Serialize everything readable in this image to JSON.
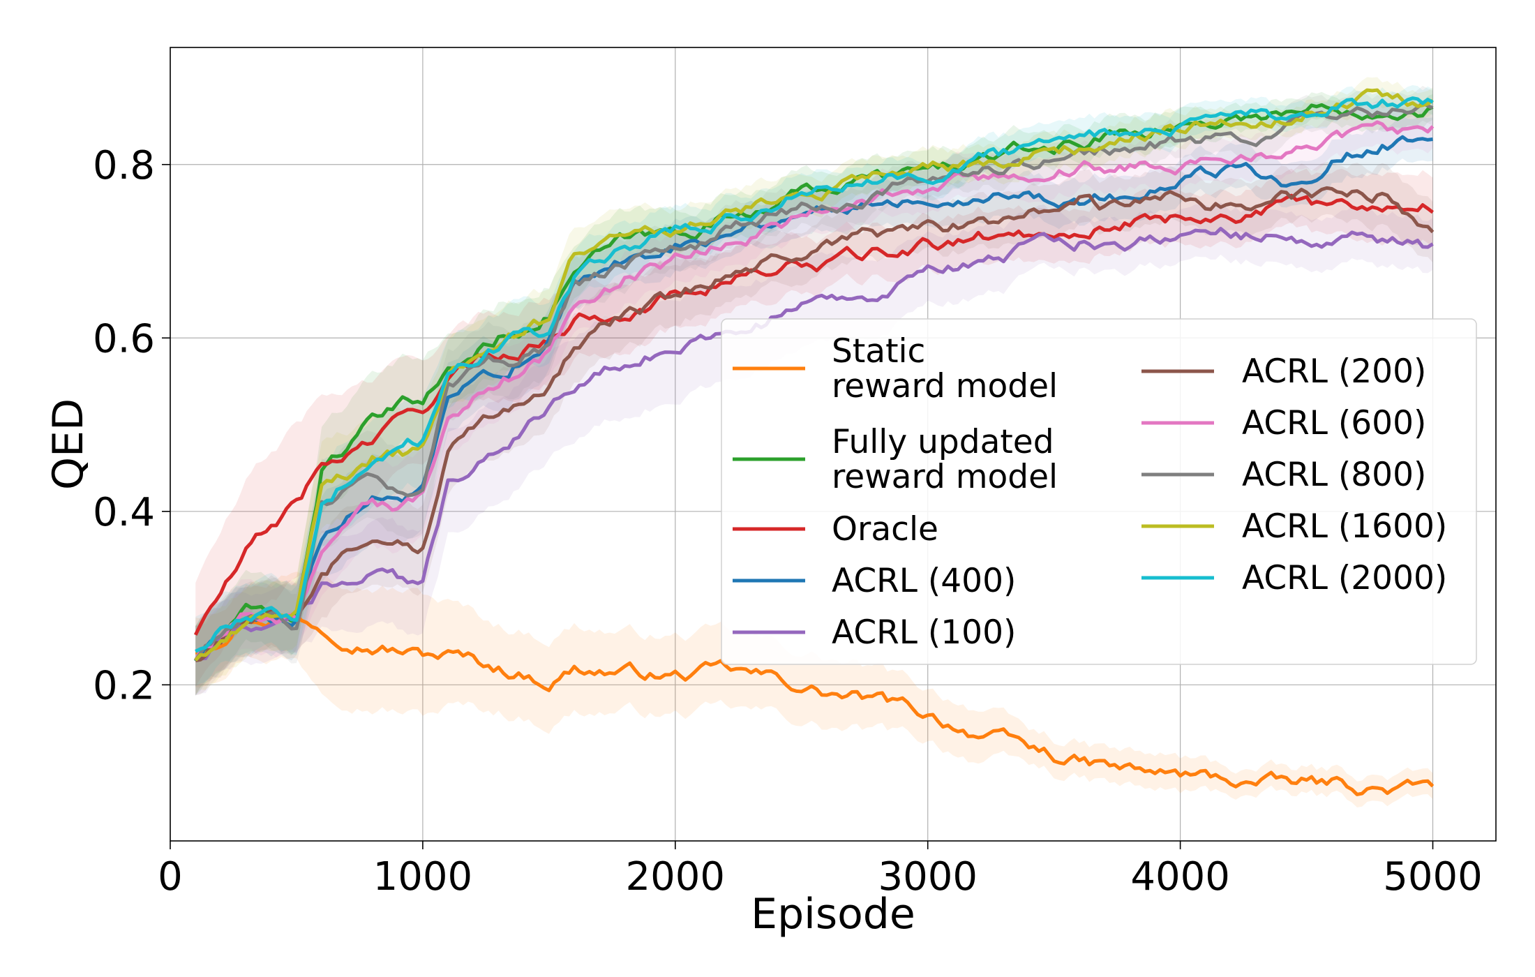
{
  "chart_data": {
    "type": "line",
    "xlabel": "Episode",
    "ylabel": "QED",
    "xlim": [
      0,
      5250
    ],
    "ylim": [
      0.02,
      0.935
    ],
    "xticks": [
      0,
      1000,
      2000,
      3000,
      4000,
      5000
    ],
    "xtick_labels": [
      "0",
      "1000",
      "2000",
      "3000",
      "4000",
      "5000"
    ],
    "yticks": [
      0.2,
      0.4,
      0.6,
      0.8
    ],
    "ytick_labels": [
      "0.2",
      "0.4",
      "0.6",
      "0.8"
    ],
    "grid": true,
    "legend_placement": "center-right",
    "x": [
      100,
      300,
      500,
      600,
      800,
      1000,
      1100,
      1300,
      1500,
      1600,
      1800,
      2000,
      2200,
      2400,
      2600,
      2800,
      3000,
      3200,
      3400,
      3600,
      3800,
      4000,
      4200,
      4400,
      4600,
      4800,
      5000
    ],
    "series": [
      {
        "name": "Static reward model",
        "legend_lines": [
          "Static",
          "reward model"
        ],
        "color": "#ff7f0e",
        "values": [
          0.24,
          0.28,
          0.28,
          0.27,
          0.25,
          0.235,
          0.235,
          0.22,
          0.205,
          0.22,
          0.215,
          0.21,
          0.215,
          0.205,
          0.19,
          0.18,
          0.165,
          0.145,
          0.125,
          0.11,
          0.1,
          0.095,
          0.09,
          0.085,
          0.085,
          0.08,
          0.08
        ],
        "spread": [
          0.04,
          0.04,
          0.05,
          0.07,
          0.07,
          0.07,
          0.06,
          0.05,
          0.05,
          0.05,
          0.045,
          0.045,
          0.045,
          0.04,
          0.04,
          0.035,
          0.03,
          0.03,
          0.02,
          0.02,
          0.02,
          0.02,
          0.015,
          0.015,
          0.015,
          0.015,
          0.015
        ]
      },
      {
        "name": "Fully updated reward model",
        "legend_lines": [
          "Fully updated",
          "reward model"
        ],
        "color": "#2ca02c",
        "values": [
          0.23,
          0.28,
          0.28,
          0.45,
          0.5,
          0.53,
          0.56,
          0.6,
          0.63,
          0.68,
          0.71,
          0.72,
          0.74,
          0.76,
          0.775,
          0.785,
          0.79,
          0.805,
          0.815,
          0.825,
          0.84,
          0.845,
          0.855,
          0.86,
          0.865,
          0.868,
          0.87
        ],
        "spread": [
          0.04,
          0.04,
          0.04,
          0.05,
          0.05,
          0.05,
          0.04,
          0.04,
          0.035,
          0.03,
          0.03,
          0.025,
          0.025,
          0.025,
          0.02,
          0.02,
          0.02,
          0.02,
          0.02,
          0.02,
          0.02,
          0.02,
          0.015,
          0.015,
          0.015,
          0.015,
          0.015
        ]
      },
      {
        "name": "Oracle",
        "legend_lines": [
          "Oracle"
        ],
        "color": "#d62728",
        "values": [
          0.26,
          0.35,
          0.41,
          0.45,
          0.48,
          0.52,
          0.55,
          0.58,
          0.6,
          0.62,
          0.635,
          0.65,
          0.67,
          0.68,
          0.685,
          0.695,
          0.705,
          0.715,
          0.72,
          0.73,
          0.735,
          0.74,
          0.745,
          0.75,
          0.75,
          0.755,
          0.755
        ],
        "spread": [
          0.06,
          0.08,
          0.09,
          0.08,
          0.07,
          0.06,
          0.05,
          0.05,
          0.05,
          0.045,
          0.04,
          0.04,
          0.035,
          0.035,
          0.03,
          0.03,
          0.03,
          0.03,
          0.03,
          0.03,
          0.03,
          0.03,
          0.03,
          0.03,
          0.035,
          0.04,
          0.04
        ]
      },
      {
        "name": "ACRL (400)",
        "legend_lines": [
          "ACRL (400)"
        ],
        "color": "#1f77b4",
        "values": [
          0.23,
          0.28,
          0.28,
          0.37,
          0.41,
          0.42,
          0.52,
          0.56,
          0.6,
          0.66,
          0.69,
          0.71,
          0.725,
          0.74,
          0.75,
          0.76,
          0.765,
          0.77,
          0.765,
          0.76,
          0.765,
          0.775,
          0.795,
          0.785,
          0.81,
          0.825,
          0.83
        ],
        "spread": [
          0.04,
          0.04,
          0.04,
          0.05,
          0.05,
          0.05,
          0.04,
          0.04,
          0.035,
          0.03,
          0.03,
          0.03,
          0.025,
          0.025,
          0.025,
          0.025,
          0.025,
          0.025,
          0.025,
          0.025,
          0.025,
          0.025,
          0.025,
          0.025,
          0.025,
          0.025,
          0.025
        ]
      },
      {
        "name": "ACRL (100)",
        "legend_lines": [
          "ACRL (100)"
        ],
        "color": "#9467bd",
        "values": [
          0.23,
          0.27,
          0.28,
          0.31,
          0.33,
          0.31,
          0.43,
          0.48,
          0.52,
          0.55,
          0.57,
          0.59,
          0.61,
          0.625,
          0.645,
          0.655,
          0.67,
          0.69,
          0.7,
          0.71,
          0.715,
          0.725,
          0.72,
          0.715,
          0.715,
          0.71,
          0.7
        ],
        "spread": [
          0.04,
          0.04,
          0.04,
          0.05,
          0.06,
          0.06,
          0.06,
          0.06,
          0.06,
          0.06,
          0.06,
          0.06,
          0.055,
          0.05,
          0.05,
          0.045,
          0.04,
          0.04,
          0.035,
          0.03,
          0.03,
          0.03,
          0.03,
          0.03,
          0.03,
          0.03,
          0.03
        ]
      },
      {
        "name": "ACRL (200)",
        "legend_lines": [
          "ACRL (200)"
        ],
        "color": "#8c564b",
        "values": [
          0.23,
          0.28,
          0.28,
          0.33,
          0.38,
          0.36,
          0.47,
          0.52,
          0.55,
          0.59,
          0.625,
          0.645,
          0.675,
          0.69,
          0.705,
          0.715,
          0.725,
          0.73,
          0.74,
          0.76,
          0.745,
          0.76,
          0.755,
          0.765,
          0.76,
          0.765,
          0.72
        ],
        "spread": [
          0.04,
          0.04,
          0.04,
          0.05,
          0.05,
          0.05,
          0.05,
          0.05,
          0.045,
          0.04,
          0.04,
          0.035,
          0.03,
          0.03,
          0.03,
          0.03,
          0.03,
          0.03,
          0.03,
          0.03,
          0.03,
          0.03,
          0.03,
          0.03,
          0.03,
          0.035,
          0.035
        ]
      },
      {
        "name": "ACRL (600)",
        "legend_lines": [
          "ACRL (600)"
        ],
        "color": "#e377c2",
        "values": [
          0.23,
          0.28,
          0.28,
          0.36,
          0.4,
          0.41,
          0.5,
          0.55,
          0.58,
          0.64,
          0.67,
          0.69,
          0.715,
          0.73,
          0.745,
          0.76,
          0.77,
          0.78,
          0.79,
          0.8,
          0.8,
          0.795,
          0.81,
          0.82,
          0.825,
          0.835,
          0.845
        ],
        "spread": [
          0.04,
          0.04,
          0.04,
          0.05,
          0.05,
          0.05,
          0.04,
          0.04,
          0.035,
          0.03,
          0.03,
          0.03,
          0.025,
          0.025,
          0.025,
          0.025,
          0.025,
          0.025,
          0.025,
          0.025,
          0.025,
          0.025,
          0.025,
          0.025,
          0.025,
          0.025,
          0.025
        ]
      },
      {
        "name": "ACRL (800)",
        "legend_lines": [
          "ACRL (800)"
        ],
        "color": "#7f7f7f",
        "values": [
          0.23,
          0.28,
          0.27,
          0.4,
          0.43,
          0.42,
          0.54,
          0.57,
          0.59,
          0.66,
          0.68,
          0.7,
          0.725,
          0.74,
          0.755,
          0.77,
          0.78,
          0.79,
          0.8,
          0.81,
          0.82,
          0.825,
          0.83,
          0.845,
          0.855,
          0.86,
          0.865
        ],
        "spread": [
          0.04,
          0.04,
          0.04,
          0.05,
          0.05,
          0.05,
          0.04,
          0.04,
          0.035,
          0.03,
          0.03,
          0.025,
          0.025,
          0.025,
          0.02,
          0.02,
          0.02,
          0.02,
          0.02,
          0.02,
          0.02,
          0.02,
          0.02,
          0.02,
          0.02,
          0.02,
          0.02
        ]
      },
      {
        "name": "ACRL (1600)",
        "legend_lines": [
          "ACRL (1600)"
        ],
        "color": "#bcbd22",
        "values": [
          0.23,
          0.28,
          0.28,
          0.42,
          0.46,
          0.47,
          0.56,
          0.6,
          0.62,
          0.69,
          0.715,
          0.73,
          0.745,
          0.76,
          0.775,
          0.785,
          0.795,
          0.8,
          0.81,
          0.82,
          0.835,
          0.845,
          0.855,
          0.86,
          0.87,
          0.875,
          0.875
        ],
        "spread": [
          0.04,
          0.04,
          0.04,
          0.05,
          0.05,
          0.05,
          0.04,
          0.04,
          0.035,
          0.03,
          0.03,
          0.025,
          0.025,
          0.025,
          0.02,
          0.02,
          0.02,
          0.02,
          0.02,
          0.02,
          0.02,
          0.02,
          0.015,
          0.015,
          0.015,
          0.015,
          0.015
        ]
      },
      {
        "name": "ACRL (2000)",
        "legend_lines": [
          "ACRL (2000)"
        ],
        "color": "#17becf",
        "values": [
          0.24,
          0.28,
          0.28,
          0.42,
          0.46,
          0.48,
          0.56,
          0.59,
          0.61,
          0.67,
          0.7,
          0.72,
          0.74,
          0.76,
          0.775,
          0.785,
          0.795,
          0.805,
          0.815,
          0.83,
          0.835,
          0.84,
          0.845,
          0.855,
          0.865,
          0.87,
          0.875
        ],
        "spread": [
          0.04,
          0.04,
          0.04,
          0.05,
          0.05,
          0.05,
          0.04,
          0.04,
          0.035,
          0.03,
          0.03,
          0.025,
          0.025,
          0.025,
          0.02,
          0.02,
          0.02,
          0.02,
          0.02,
          0.02,
          0.02,
          0.02,
          0.015,
          0.015,
          0.015,
          0.015,
          0.015
        ]
      }
    ],
    "legend_columns": [
      [
        "Static reward model",
        "Fully updated reward model",
        "Oracle",
        "ACRL (400)",
        "ACRL (100)"
      ],
      [
        "ACRL (200)",
        "ACRL (600)",
        "ACRL (800)",
        "ACRL (1600)",
        "ACRL (2000)"
      ]
    ]
  }
}
